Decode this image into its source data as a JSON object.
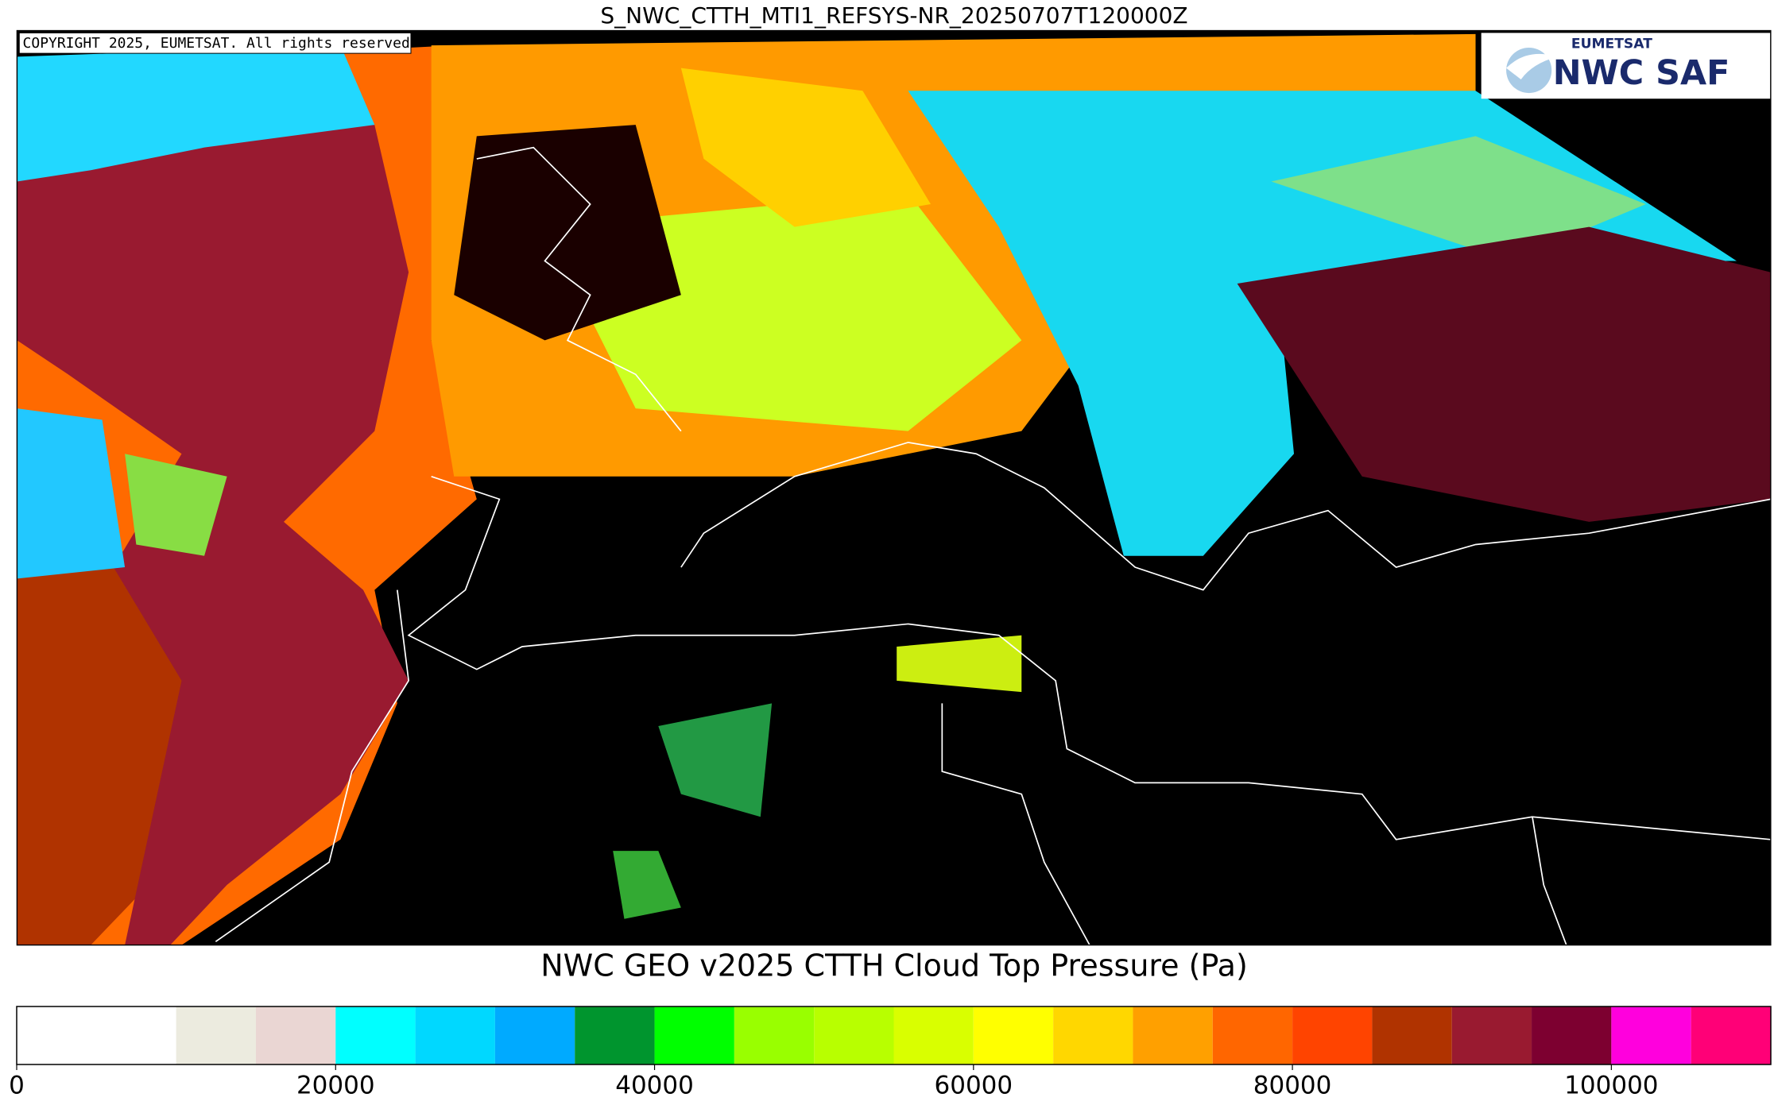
{
  "title": "S_NWC_CTTH_MTI1_REFSYS-NR_20250707T120000Z",
  "copyright": "COPYRIGHT 2025, EUMETSAT. All rights reserved",
  "logo": {
    "org": "EUMETSAT",
    "product": "NWC SAF"
  },
  "colorbar": {
    "title": "NWC GEO v2025 CTTH Cloud Top Pressure (Pa)",
    "xlim": [
      0,
      110000
    ],
    "bounds": [
      0,
      10000,
      15000,
      20000,
      25000,
      30000,
      35000,
      40000,
      45000,
      50000,
      55000,
      60000,
      65000,
      70000,
      75000,
      80000,
      85000,
      90000,
      95000,
      100000,
      105000,
      110000
    ],
    "colors": [
      "#ffffff",
      "#ecebdf",
      "#ead6d3",
      "#00ffff",
      "#00d8ff",
      "#00aaff",
      "#00952e",
      "#00ff00",
      "#99ff00",
      "#b8ff00",
      "#d9ff00",
      "#ffff00",
      "#ffd700",
      "#ffa000",
      "#ff6600",
      "#ff4400",
      "#b03300",
      "#991a30",
      "#7d0030",
      "#ff00dd",
      "#ff0077"
    ],
    "ticks": [
      0,
      20000,
      40000,
      60000,
      80000,
      100000
    ]
  }
}
